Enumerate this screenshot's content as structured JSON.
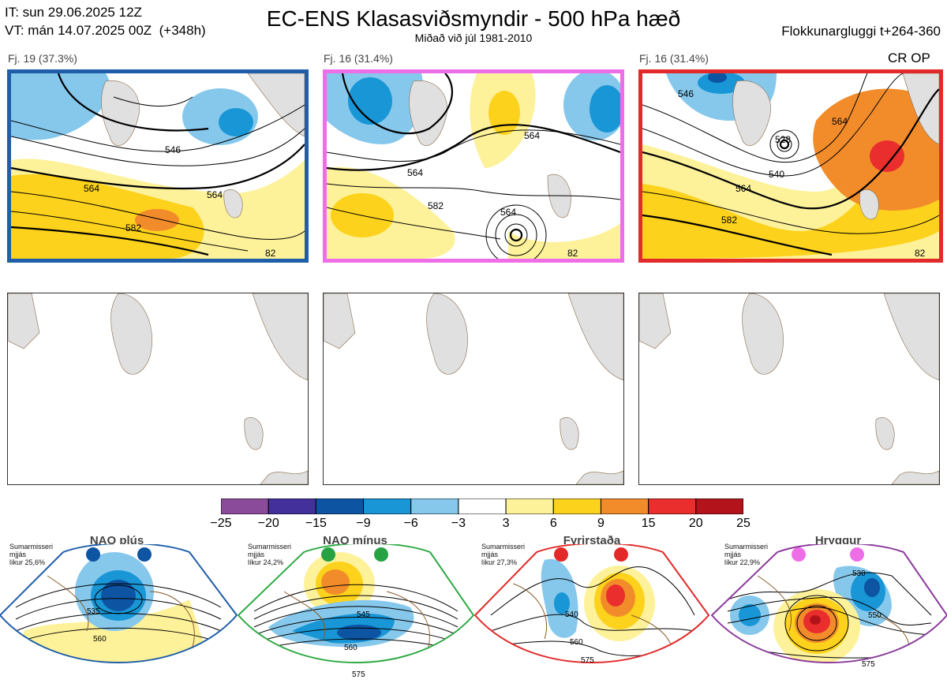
{
  "header": {
    "it_line": "IT: sun 29.06.2025 12Z",
    "vt_line": "VT: mán 14.07.2025 00Z  (+348h)",
    "title": "EC-ENS Klasasviðsmyndir - 500 hPa hæð",
    "subtitle": "Miðað við júl 1981-2010",
    "window": "Flokkunargluggi t+264-360"
  },
  "clusters": [
    {
      "label": "Fj. 19 (37.3%)",
      "tag": "",
      "border": "#1f5ea8",
      "contours": [
        "546",
        "564",
        "564",
        "582",
        "82"
      ]
    },
    {
      "label": "Fj. 16 (31.4%)",
      "tag": "",
      "border": "#ee6ee8",
      "contours": [
        "564",
        "564",
        "564",
        "582",
        "82"
      ]
    },
    {
      "label": "Fj. 16 (31.4%)",
      "tag": "CR OP",
      "border": "#e22a2a",
      "contours": [
        "528",
        "540",
        "546",
        "564",
        "564",
        "582",
        "82"
      ]
    }
  ],
  "colorbar": {
    "ticks": [
      "−25",
      "−20",
      "−15",
      "−9",
      "−6",
      "−3",
      "3",
      "6",
      "9",
      "15",
      "20",
      "25"
    ],
    "colors": [
      "#8b4b9b",
      "#43309a",
      "#0d54a3",
      "#1896d6",
      "#86c8ec",
      "#ffffff",
      "#fdf29a",
      "#fcd21c",
      "#f28c2b",
      "#ea2d2d",
      "#b3141c"
    ]
  },
  "regimes": [
    {
      "name": "NAO plús",
      "info": "Sumarmisseri\nmjjás\nlíkur 25,6%",
      "color": "#1f5ea8",
      "dot": "#0d54a3",
      "contours": [
        "535",
        "560"
      ]
    },
    {
      "name": "NAO mínus",
      "info": "Sumarmisseri\nmjjás\nlíkur 24,2%",
      "color": "#2eaa44",
      "dot": "#27a243",
      "contours": [
        "545",
        "560",
        "575"
      ]
    },
    {
      "name": "Fyrirstaða",
      "info": "Sumarmisseri\nmjjás\nlíkur 27,3%",
      "color": "#e22a2a",
      "dot": "#e22a2a",
      "contours": [
        "540",
        "560",
        "575"
      ]
    },
    {
      "name": "Hryggur",
      "info": "Sumarmisseri\nmjjás\nlíkur 22,9%",
      "color": "#8b3b9b",
      "dot": "#ee6ee8",
      "contours": [
        "530",
        "550",
        "575"
      ]
    }
  ]
}
